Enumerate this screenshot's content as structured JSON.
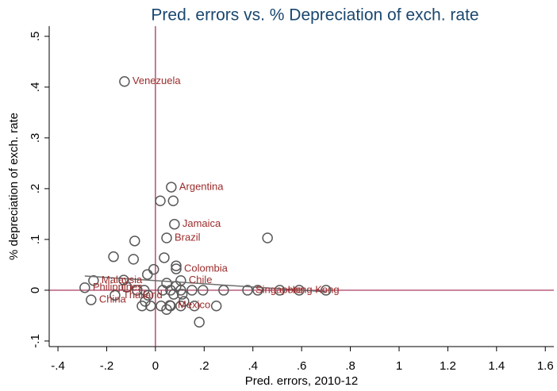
{
  "chart_data": {
    "type": "scatter",
    "title": "Pred. errors vs. % Depreciation of exch. rate",
    "x_label": "Pred. errors, 2010-12",
    "y_label": "% depreciation of exch. rate",
    "xlim": [
      -0.436,
      1.635
    ],
    "ylim": [
      -0.111,
      0.52
    ],
    "xticks": [
      {
        "value": -0.4,
        "label": "-.4"
      },
      {
        "value": -0.2,
        "label": "-.2"
      },
      0,
      {
        "value": 0.2,
        "label": ".2"
      },
      {
        "value": 0.4,
        "label": ".4"
      },
      {
        "value": 0.6,
        "label": ".6"
      },
      {
        "value": 0.8,
        "label": ".8"
      },
      1,
      {
        "value": 1.2,
        "label": "1.2"
      },
      {
        "value": 1.4,
        "label": "1.4"
      },
      {
        "value": 1.6,
        "label": "1.6"
      }
    ],
    "yticks": [
      {
        "value": -0.1,
        "label": "-.1"
      },
      0,
      {
        "value": 0.1,
        "label": ".1"
      },
      {
        "value": 0.2,
        "label": ".2"
      },
      {
        "value": 0.3,
        "label": ".3"
      },
      {
        "value": 0.4,
        "label": ".4"
      },
      {
        "value": 0.5,
        "label": ".5"
      }
    ],
    "marker_color": "#595959",
    "label_color": "#9c2b2b",
    "refline_color": "#a0264e",
    "fit_color": "#6e6e6e",
    "xline": 0,
    "yline": 0,
    "fit": {
      "x": [
        -0.29,
        0.7
      ],
      "y": [
        0.028,
        -0.003
      ]
    },
    "x": [
      -0.127,
      0.065,
      0.078,
      0.046,
      0.085,
      0.104,
      -0.254,
      -0.29,
      -0.264,
      -0.166,
      0.059,
      0.378,
      0.51,
      0.42,
      0.59,
      0.7,
      0.46,
      0.28,
      0.195,
      0.16,
      0.25,
      0.18,
      0.073,
      0.02,
      -0.172,
      -0.085,
      -0.09,
      0.036,
      0.085,
      -0.033,
      -0.007,
      -0.13,
      -0.117,
      -0.075,
      -0.046,
      -0.03,
      0.046,
      0.085,
      0.104,
      0.15,
      0.062,
      0.03,
      0.075,
      0.11,
      -0.055,
      -0.02,
      0.023,
      0.046,
      0.062,
      0.104,
      0.117,
      -0.042
    ],
    "y": [
      0.411,
      0.203,
      0.13,
      0.103,
      0.042,
      0.019,
      0.019,
      0.005,
      -0.019,
      -0.01,
      -0.03,
      0.0,
      0.0,
      0.0,
      0.0,
      0.0,
      0.103,
      0.0,
      0.0,
      -0.031,
      -0.031,
      -0.063,
      0.176,
      0.176,
      0.066,
      0.097,
      0.061,
      0.064,
      0.048,
      0.031,
      0.041,
      0.02,
      0.006,
      0.0,
      0.0,
      -0.01,
      0.014,
      0.008,
      0.0,
      0.0,
      0.0,
      0.0,
      -0.008,
      -0.008,
      -0.031,
      -0.031,
      -0.031,
      -0.038,
      -0.031,
      -0.031,
      -0.022,
      -0.022
    ],
    "labels": [
      "Venezuela",
      "Argentina",
      "Jamaica",
      "Brazil",
      "Colombia",
      "Chile",
      "Malaysia",
      "Philippines",
      "China",
      "Thailand",
      "Mexico",
      "Singapore",
      "Hong Kong",
      null,
      null,
      null,
      null,
      null,
      null,
      null,
      null,
      null,
      null,
      null,
      null,
      null,
      null,
      null,
      null,
      null,
      null,
      null,
      null,
      null,
      null,
      null,
      null,
      null,
      null,
      null,
      null,
      null,
      null,
      null,
      null,
      null,
      null,
      null,
      null,
      null,
      null,
      null
    ]
  }
}
